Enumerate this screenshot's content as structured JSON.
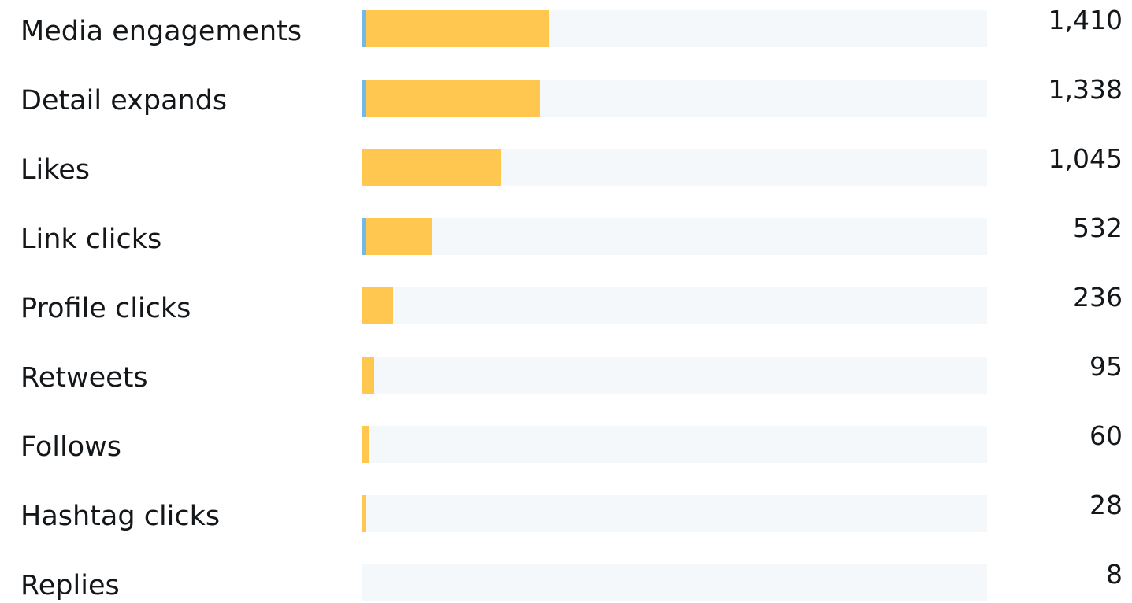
{
  "colors": {
    "track": "#f5f8fa",
    "primary_fill": "#ffc74f",
    "secondary_fill": "#74b9e6"
  },
  "chart_data": {
    "type": "bar",
    "orientation": "horizontal",
    "categories": [
      "Media engagements",
      "Detail expands",
      "Likes",
      "Link clicks",
      "Profile clicks",
      "Retweets",
      "Follows",
      "Hashtag clicks",
      "Replies"
    ],
    "values": [
      1410,
      1338,
      1045,
      532,
      236,
      95,
      60,
      28,
      8
    ],
    "value_labels": [
      "1,410",
      "1,338",
      "1,045",
      "532",
      "236",
      "95",
      "60",
      "28",
      "8"
    ],
    "series": [
      {
        "color": "#ffc74f",
        "values": [
          1375,
          1302,
          1045,
          498,
          236,
          95,
          60,
          28,
          8
        ]
      },
      {
        "color": "#74b9e6",
        "values": [
          35,
          36,
          0,
          34,
          0,
          0,
          0,
          0,
          0
        ]
      }
    ],
    "xlim": [
      0,
      4700
    ],
    "title": "",
    "xlabel": "",
    "ylabel": "",
    "grid": false,
    "legend": "none"
  }
}
